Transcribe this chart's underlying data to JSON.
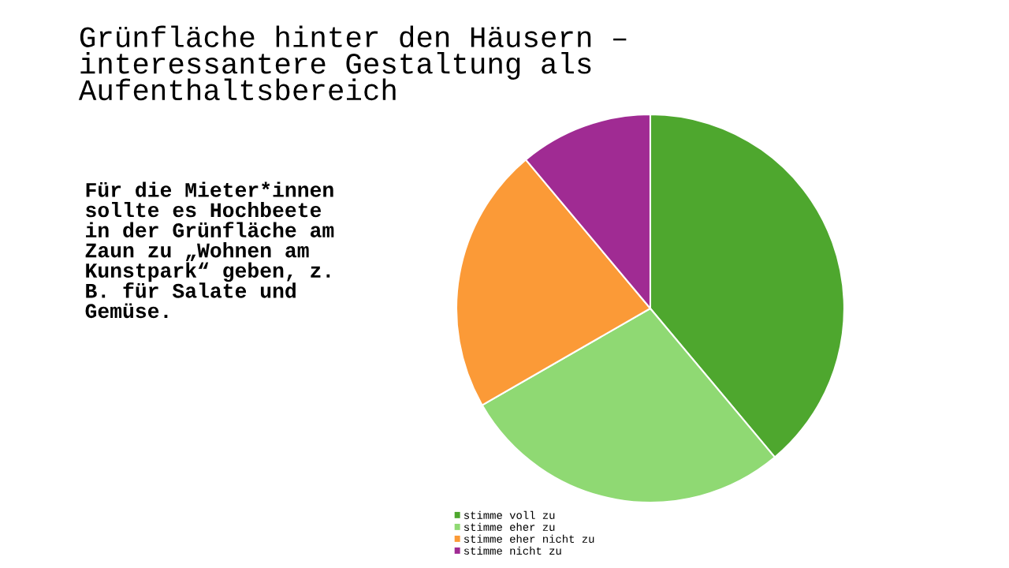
{
  "chart_data": {
    "type": "pie",
    "title": "Grünfläche hinter den Häusern –\ninteressantere Gestaltung als\nAufenthaltsbereich",
    "categories": [
      "stimme voll zu",
      "stimme eher zu",
      "stimme eher nicht zu",
      "stimme nicht zu"
    ],
    "values": [
      38.9,
      27.8,
      22.2,
      11.1
    ],
    "colors": [
      "#4ea72e",
      "#8fd973",
      "#fb9a37",
      "#a02b93"
    ],
    "annotations": [
      "Für die Mieter*innen\nsollte es Hochbeete\nin der Grünfläche am\nZaun zu „Wohnen am\nKunstpark“ geben, z.\nB. für Salate und\nGemüse."
    ],
    "legend": "bottom"
  }
}
